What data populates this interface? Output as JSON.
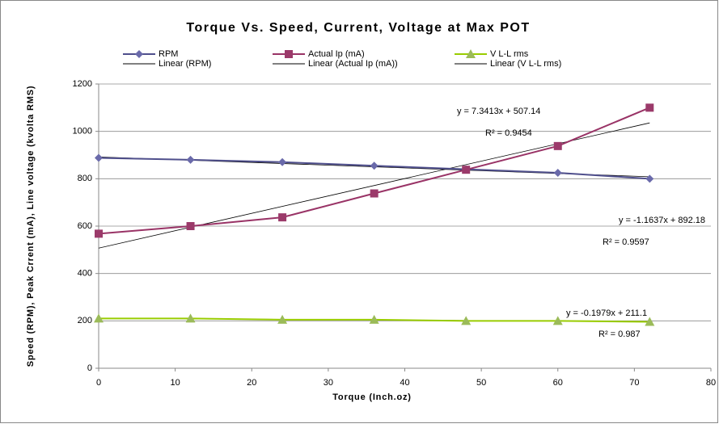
{
  "chart_data": {
    "type": "scatter_line",
    "title": "Torque Vs. Speed, Current, Voltage at Max POT",
    "x_label": "Torque (Inch.oz)",
    "y_label": "Speed (RPM), Peak Crrent (mA), Line voltage (kvolta RMS)",
    "x": [
      0,
      12,
      24,
      36,
      48,
      60,
      72
    ],
    "series": [
      {
        "name": "RPM",
        "color": "#4f4f8c",
        "marker_color": "#6a6aaa",
        "marker": "diamond",
        "values": [
          888,
          880,
          870,
          855,
          840,
          825,
          800
        ]
      },
      {
        "name": "Actual Ip (mA)",
        "color": "#993366",
        "marker_color": "#9b3a6a",
        "marker": "square",
        "values": [
          568,
          600,
          637,
          738,
          838,
          938,
          1100
        ]
      },
      {
        "name": "V L-L rms",
        "color": "#99cc00",
        "marker_color": "#9bbb59",
        "marker": "triangle",
        "values": [
          210,
          210,
          205,
          205,
          200,
          200,
          196
        ]
      }
    ],
    "trendlines": [
      {
        "name": "Linear (RPM)",
        "color": "#000000",
        "x": [
          0,
          72
        ],
        "values": [
          892.18,
          808.39
        ],
        "equation": "y = -1.1637x + 892.18",
        "r2": "R² = 0.9597"
      },
      {
        "name": "Linear (Actual Ip (mA))",
        "color": "#000000",
        "x": [
          0,
          72
        ],
        "values": [
          507.14,
          1035.71
        ],
        "equation": "y = 7.3413x + 507.14",
        "r2": "R² = 0.9454"
      },
      {
        "name": "Linear (V L-L rms)",
        "color": "#000000",
        "x": [
          0,
          72
        ],
        "values": [
          211.1,
          196.85
        ],
        "equation": "y = -0.1979x + 211.1",
        "r2": "R² = 0.987"
      }
    ],
    "xlim": [
      0,
      80
    ],
    "xticks": [
      0,
      10,
      20,
      30,
      40,
      50,
      60,
      70,
      80
    ],
    "ylim": [
      0,
      1200
    ],
    "yticks": [
      0,
      200,
      400,
      600,
      800,
      1000,
      1200
    ],
    "grid": true,
    "legend": "top"
  }
}
